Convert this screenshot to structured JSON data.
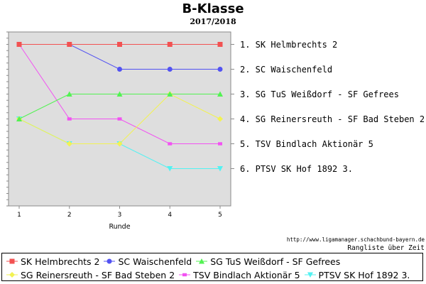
{
  "chart_data": {
    "type": "line",
    "title": "B-Klasse",
    "subtitle": "2017/2018",
    "xlabel": "Runde",
    "ylabel": "",
    "x": [
      1,
      2,
      3,
      4,
      5
    ],
    "ylim": [
      0.5,
      7.5
    ],
    "y_inverted": true,
    "grid": false,
    "legend_placement": "bottom",
    "series": [
      {
        "name": "SK Helmbrechts 2",
        "values": [
          1,
          1,
          1,
          1,
          1
        ],
        "color": "#f25252",
        "marker": "square"
      },
      {
        "name": "SC Waischenfeld",
        "values": [
          1,
          1,
          2,
          2,
          2
        ],
        "color": "#5252f2",
        "marker": "circle"
      },
      {
        "name": "SG TuS Weißdorf - SF Gefrees",
        "values": [
          4,
          3,
          3,
          3,
          3
        ],
        "color": "#52f252",
        "marker": "triangle-up"
      },
      {
        "name": "SG Reinersreuth - SF Bad Steben 2",
        "values": [
          4,
          5,
          5,
          3,
          4
        ],
        "color": "#f2f252",
        "marker": "diamond"
      },
      {
        "name": "TSV Bindlach Aktionär 5",
        "values": [
          1,
          4,
          4,
          5,
          5
        ],
        "color": "#f252f2",
        "marker": "square-small"
      },
      {
        "name": "PTSV SK Hof 1892 3.",
        "values": [
          4,
          5,
          5,
          6,
          6
        ],
        "color": "#52f2f2",
        "marker": "triangle-down"
      }
    ],
    "ranking_labels": [
      "1. SK Helmbrechts 2",
      "2. SC Waischenfeld",
      "3. SG TuS Weißdorf - SF Gefrees",
      "4. SG Reinersreuth - SF Bad Steben 2",
      "5. TSV Bindlach Aktionär 5",
      "6. PTSV SK Hof 1892 3."
    ],
    "source": "http://www.ligamanager.schachbund-bayern.de",
    "source_note": "Rangliste über Zeit"
  }
}
